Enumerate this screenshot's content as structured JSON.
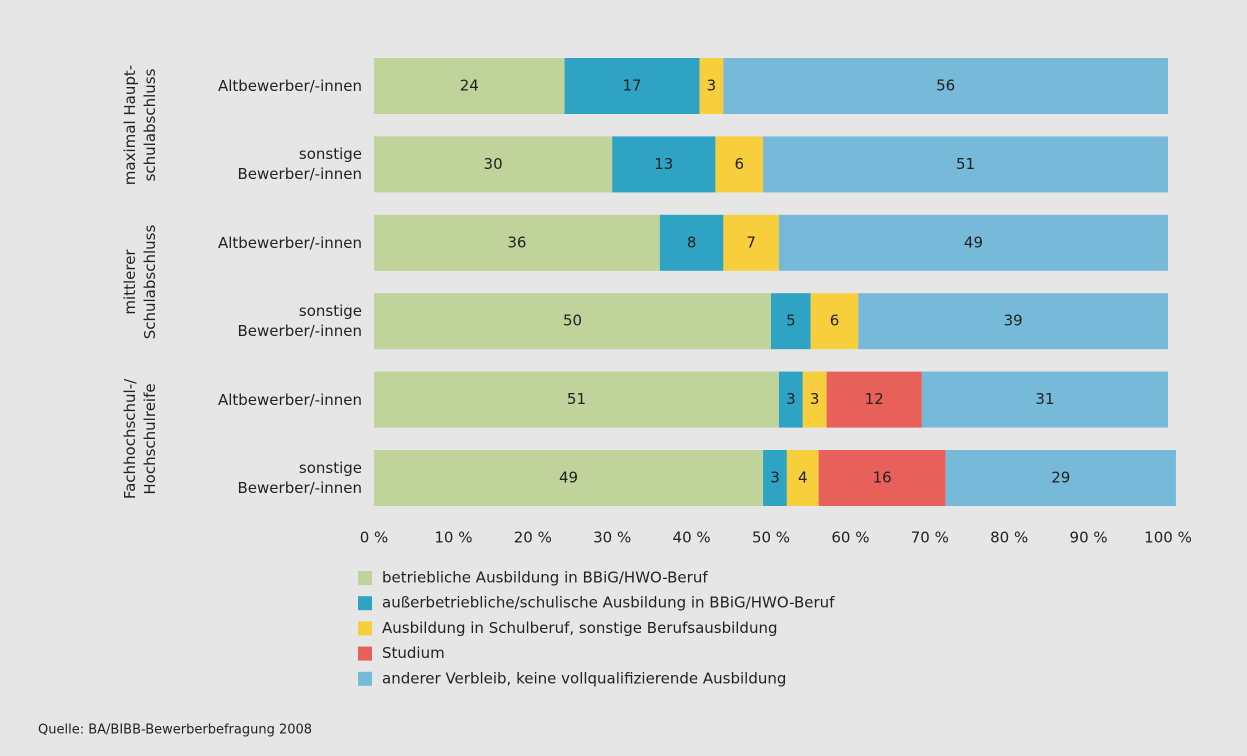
{
  "chart_data": {
    "type": "stacked_barh",
    "groups": [
      {
        "label": "maximal Haupt-\nschulabschluss"
      },
      {
        "label": "mittlerer\nSchulabschluss"
      },
      {
        "label": "Fachhochschul-/\nHochschulreife"
      }
    ],
    "categories": [
      "Altbewerber/-innen",
      "sonstige\nBewerber/-innen",
      "Altbewerber/-innen",
      "sonstige\nBewerber/-innen",
      "Altbewerber/-innen",
      "sonstige\nBewerber/-innen"
    ],
    "series": [
      {
        "name": "betriebliche Ausbildung in BBiG/HWO-Beruf",
        "color": "#bfd39a",
        "values": [
          24,
          30,
          36,
          50,
          51,
          49
        ]
      },
      {
        "name": "außerbetriebliche/schulische Ausbildung in BBiG/HWO-Beruf",
        "color": "#2ea3c4",
        "values": [
          17,
          13,
          8,
          5,
          3,
          3
        ]
      },
      {
        "name": "Ausbildung in Schulberuf, sonstige Berufsausbildung",
        "color": "#f7cf3d",
        "values": [
          3,
          6,
          7,
          6,
          3,
          4
        ]
      },
      {
        "name": "Studium",
        "color": "#e8605a",
        "values": [
          null,
          null,
          null,
          null,
          12,
          16
        ]
      },
      {
        "name": "anderer Verbleib, keine vollqualifizierende Ausbildung",
        "color": "#77b9d8",
        "values": [
          56,
          51,
          49,
          39,
          31,
          29
        ]
      }
    ],
    "xlim": [
      0,
      100
    ],
    "xticks": [
      {
        "value": 0,
        "label": "0 %"
      },
      {
        "value": 10,
        "label": "10 %"
      },
      {
        "value": 20,
        "label": "20 %"
      },
      {
        "value": 30,
        "label": "30 %"
      },
      {
        "value": 40,
        "label": "40 %"
      },
      {
        "value": 50,
        "label": "50 %"
      },
      {
        "value": 60,
        "label": "60 %"
      },
      {
        "value": 70,
        "label": "70 %"
      },
      {
        "value": 80,
        "label": "80 %"
      },
      {
        "value": 90,
        "label": "90 %"
      },
      {
        "value": 100,
        "label": "100 %"
      }
    ],
    "source": "Quelle: BA/BIBB-Bewerberbefragung 2008"
  }
}
